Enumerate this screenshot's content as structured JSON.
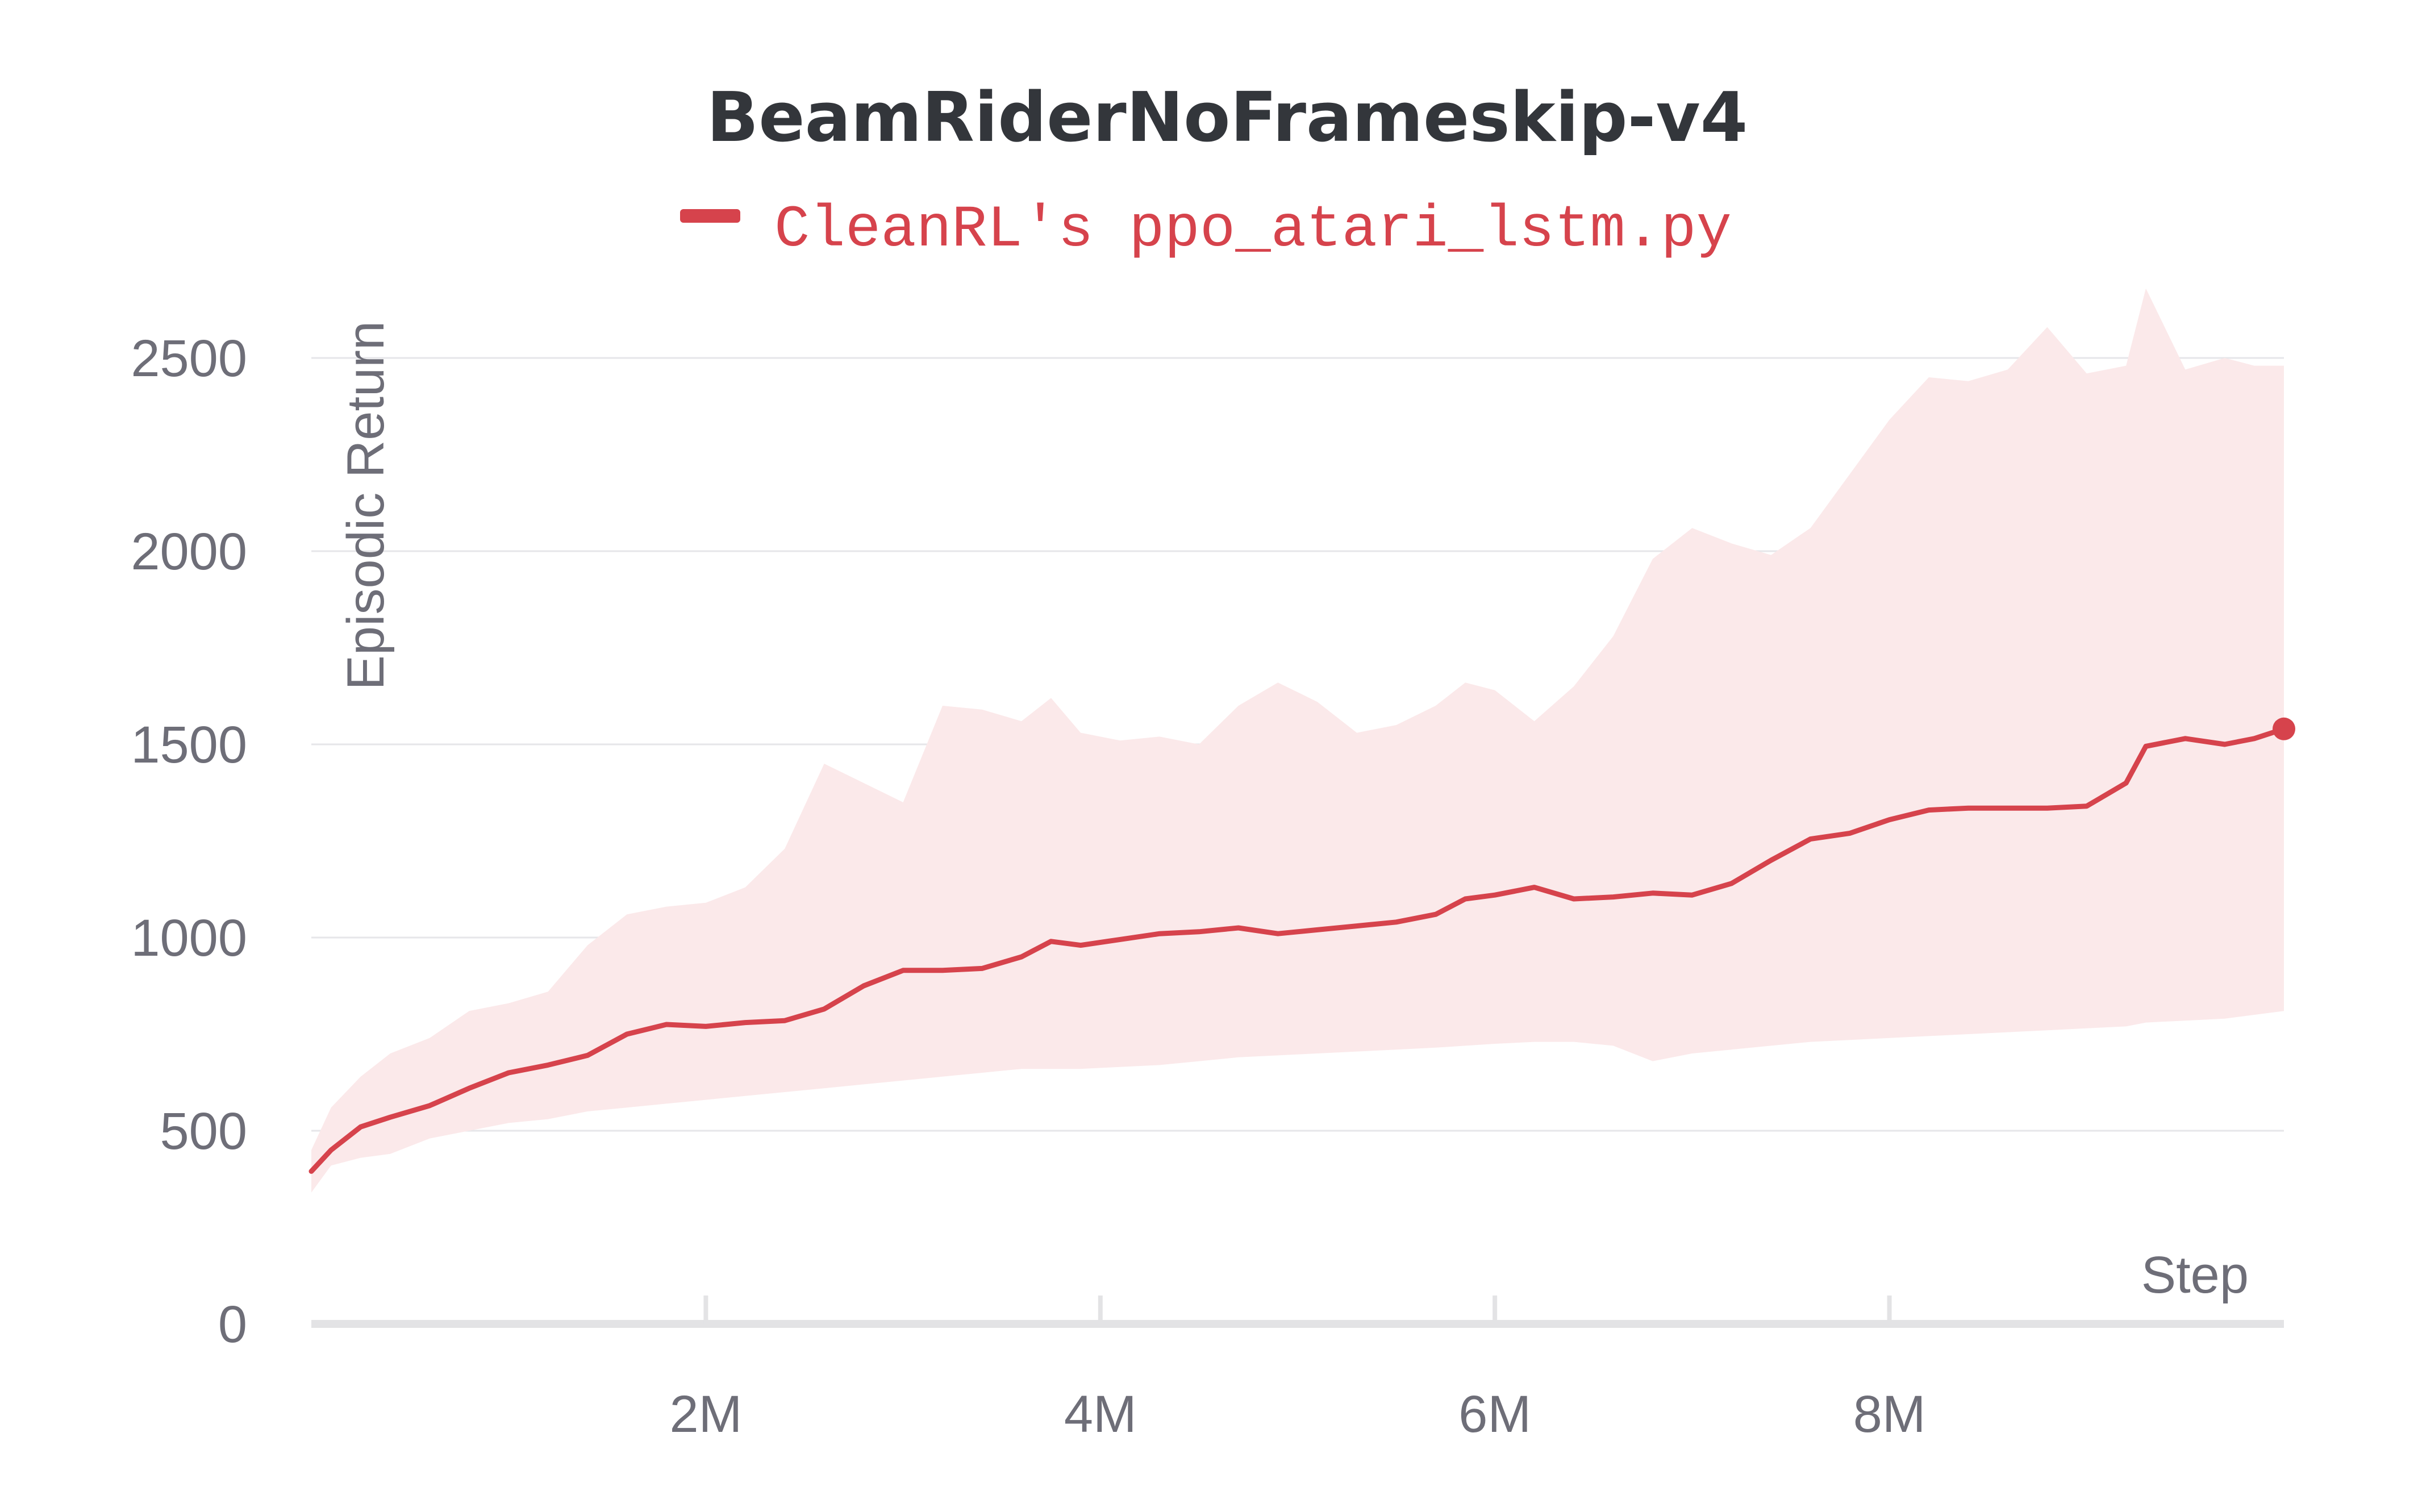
{
  "chart_data": {
    "type": "line",
    "title": "BeamRiderNoFrameskip-v4",
    "xlabel": "Step",
    "ylabel": "Episodic Return",
    "xlim": [
      0,
      10000000
    ],
    "ylim": [
      0,
      2600
    ],
    "x_ticks": [
      {
        "value": 2000000,
        "label": "2M"
      },
      {
        "value": 4000000,
        "label": "4M"
      },
      {
        "value": 6000000,
        "label": "6M"
      },
      {
        "value": 8000000,
        "label": "8M"
      }
    ],
    "y_ticks": [
      {
        "value": 0,
        "label": "0"
      },
      {
        "value": 500,
        "label": "500"
      },
      {
        "value": 1000,
        "label": "1000"
      },
      {
        "value": 1500,
        "label": "1500"
      },
      {
        "value": 2000,
        "label": "2000"
      },
      {
        "value": 2500,
        "label": "2500"
      }
    ],
    "grid": true,
    "legend_position": "top-center",
    "series": [
      {
        "name": "CleanRL's ppo_atari_lstm.py",
        "color": "#d6434c",
        "band_color": "#fbe9ea",
        "x": [
          0,
          100000,
          250000,
          400000,
          600000,
          800000,
          1000000,
          1200000,
          1400000,
          1600000,
          1800000,
          2000000,
          2200000,
          2400000,
          2600000,
          2800000,
          3000000,
          3200000,
          3400000,
          3600000,
          3750000,
          3900000,
          4100000,
          4300000,
          4500000,
          4700000,
          4900000,
          5100000,
          5300000,
          5500000,
          5700000,
          5850000,
          6000000,
          6200000,
          6400000,
          6600000,
          6800000,
          7000000,
          7200000,
          7400000,
          7600000,
          7800000,
          8000000,
          8200000,
          8400000,
          8600000,
          8800000,
          9000000,
          9200000,
          9300000,
          9500000,
          9700000,
          9850000,
          10000000
        ],
        "mean": [
          395,
          450,
          510,
          535,
          565,
          610,
          650,
          670,
          695,
          750,
          775,
          770,
          780,
          785,
          815,
          875,
          915,
          915,
          920,
          950,
          990,
          980,
          995,
          1010,
          1015,
          1025,
          1010,
          1020,
          1030,
          1040,
          1060,
          1100,
          1110,
          1130,
          1100,
          1105,
          1115,
          1110,
          1140,
          1200,
          1255,
          1270,
          1305,
          1330,
          1335,
          1335,
          1335,
          1340,
          1400,
          1495,
          1515,
          1500,
          1515,
          1540
        ],
        "upper": [
          450,
          560,
          640,
          700,
          740,
          810,
          830,
          860,
          980,
          1060,
          1080,
          1090,
          1130,
          1230,
          1450,
          1400,
          1350,
          1600,
          1590,
          1560,
          1620,
          1530,
          1510,
          1520,
          1500,
          1600,
          1660,
          1610,
          1530,
          1550,
          1600,
          1660,
          1640,
          1560,
          1650,
          1780,
          1980,
          2060,
          2020,
          1990,
          2060,
          2200,
          2340,
          2450,
          2440,
          2470,
          2580,
          2460,
          2480,
          2680,
          2470,
          2500,
          2480,
          2480
        ],
        "lower": [
          340,
          410,
          430,
          440,
          480,
          500,
          520,
          530,
          550,
          560,
          570,
          580,
          590,
          600,
          610,
          620,
          630,
          640,
          650,
          660,
          660,
          660,
          665,
          670,
          680,
          690,
          695,
          700,
          705,
          710,
          715,
          720,
          725,
          730,
          730,
          720,
          680,
          700,
          710,
          720,
          730,
          735,
          740,
          745,
          750,
          755,
          760,
          765,
          770,
          780,
          785,
          790,
          800,
          810
        ]
      }
    ]
  }
}
